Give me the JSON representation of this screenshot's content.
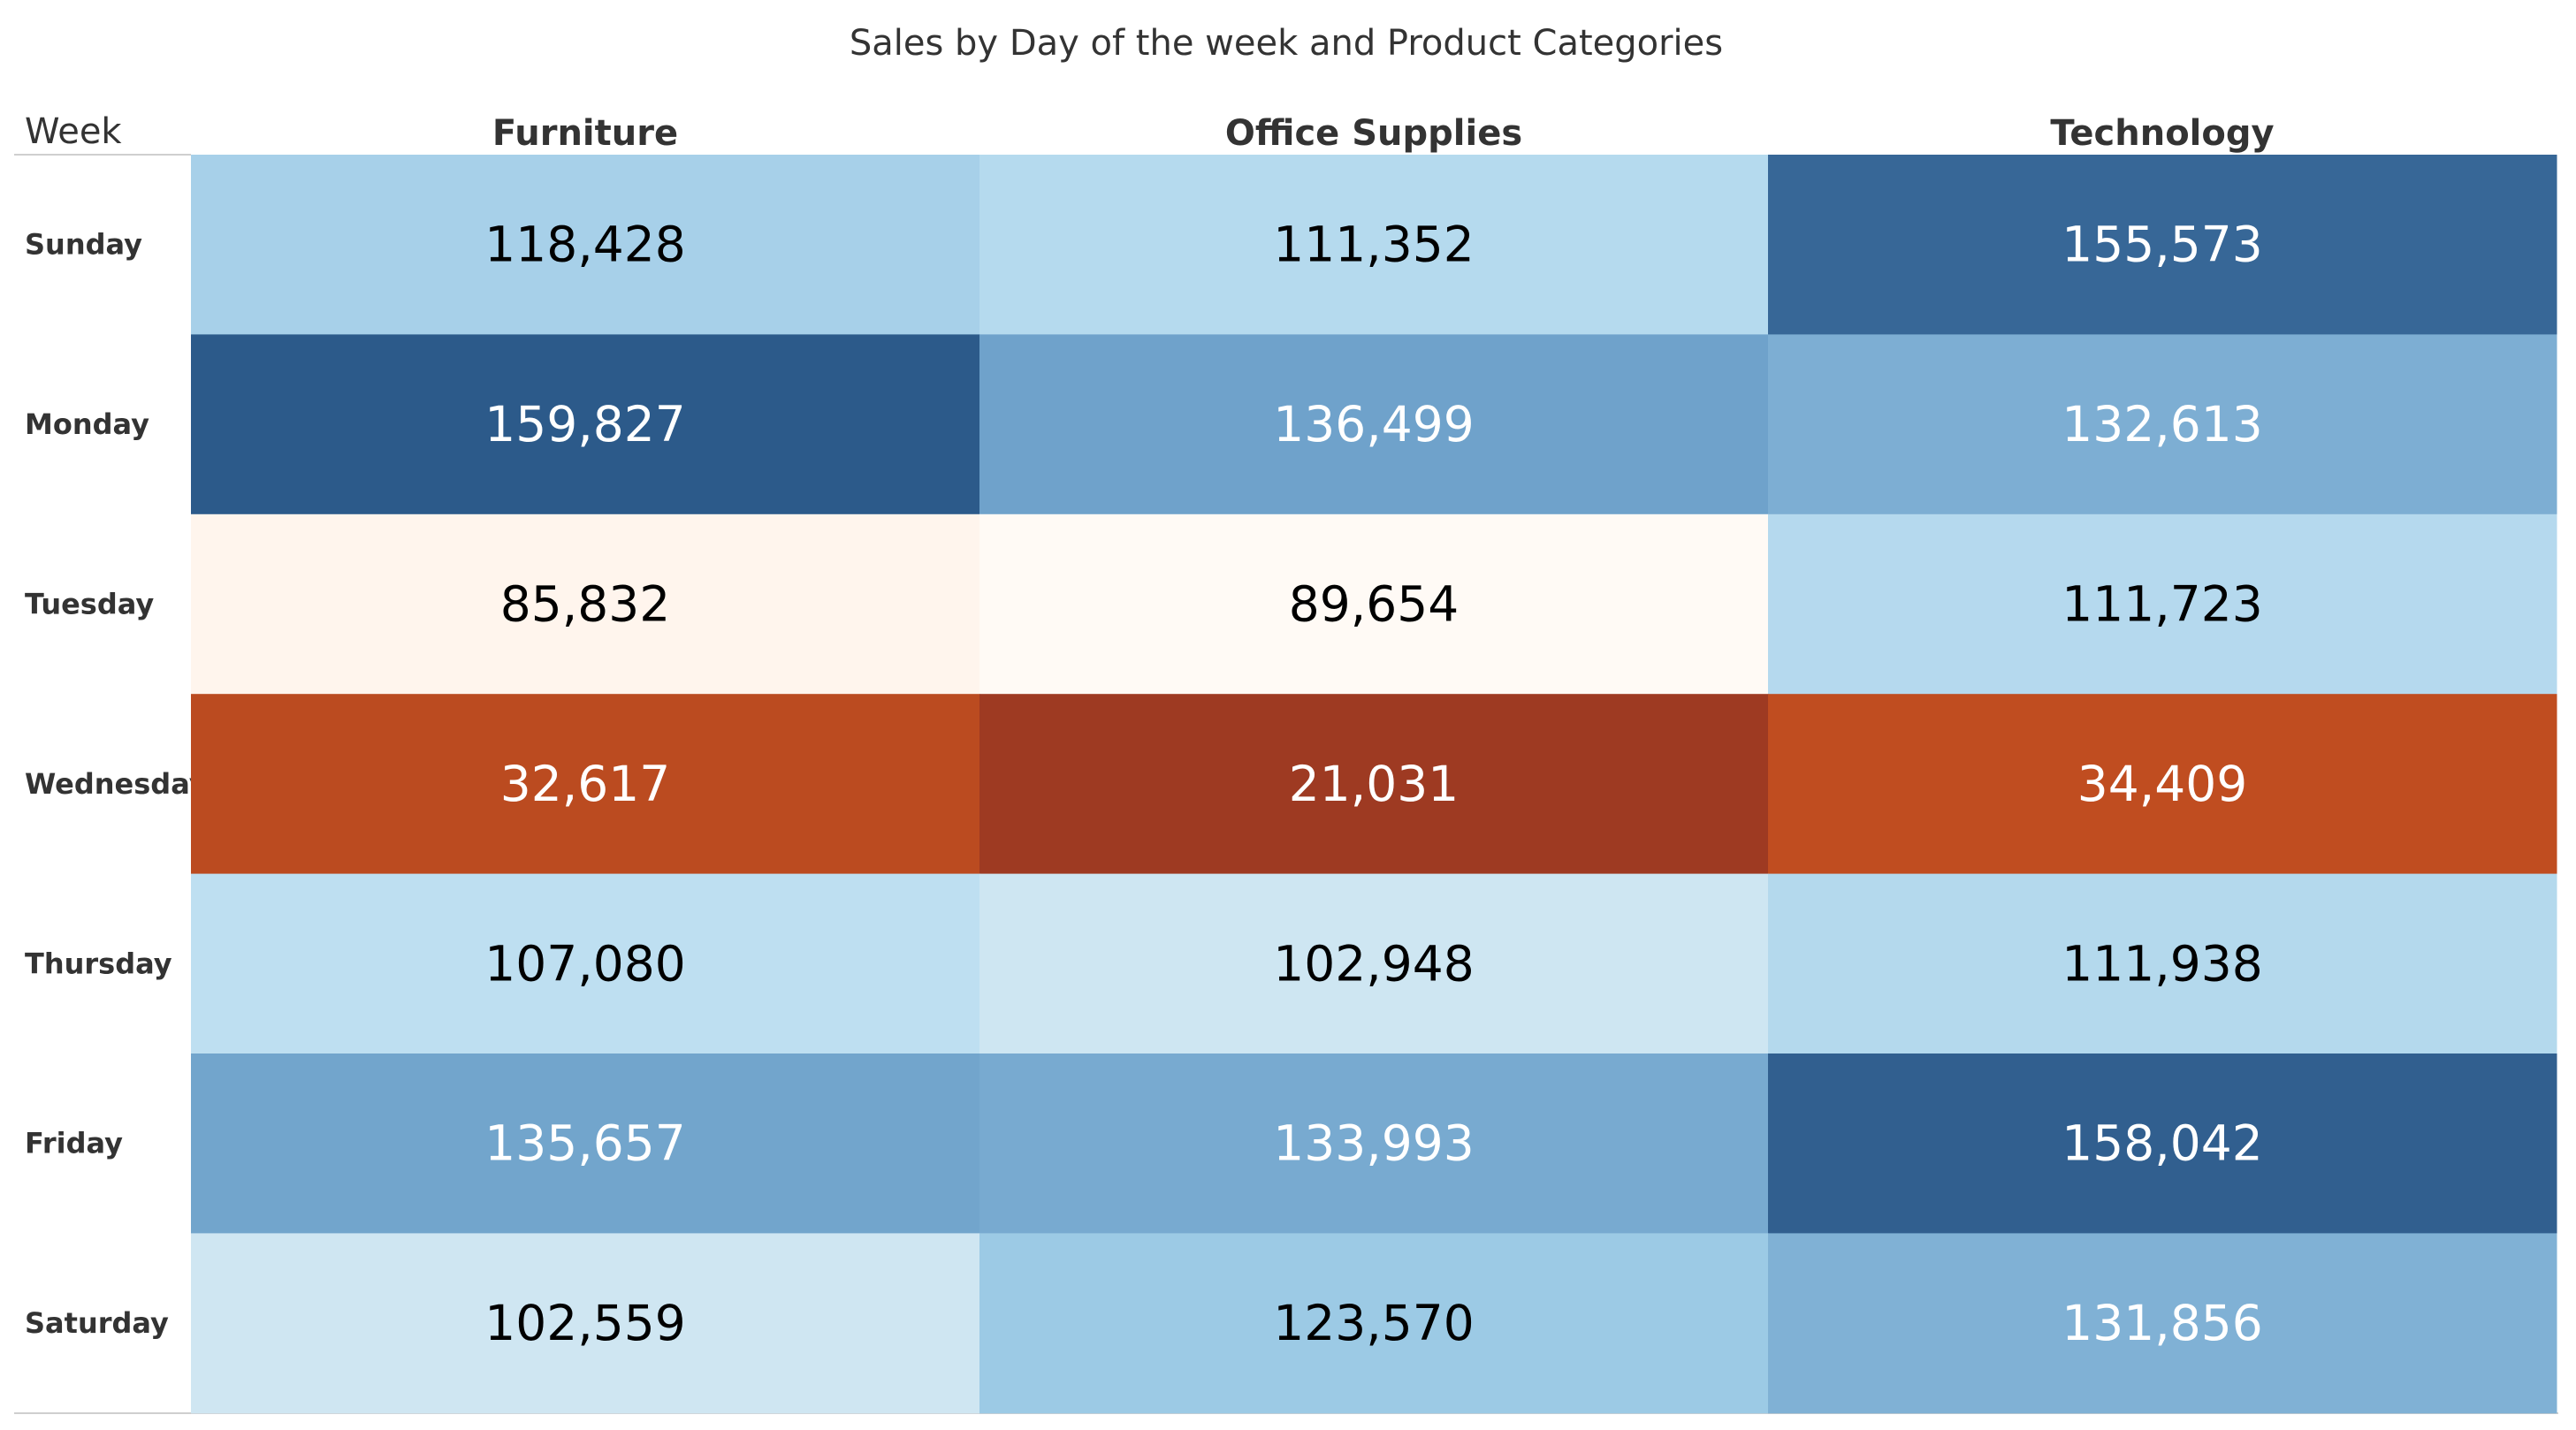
{
  "chart_data": {
    "type": "heatmap",
    "title": "Sales by Day of the week and Product Categories",
    "row_header": "Week",
    "columns": [
      "Furniture",
      "Office Supplies",
      "Technology"
    ],
    "rows": [
      "Sunday",
      "Monday",
      "Tuesday",
      "Wednesday",
      "Thursday",
      "Friday",
      "Saturday"
    ],
    "values": [
      [
        118428,
        111352,
        155573
      ],
      [
        159827,
        136499,
        132613
      ],
      [
        85832,
        89654,
        111723
      ],
      [
        32617,
        21031,
        34409
      ],
      [
        107080,
        102948,
        111938
      ],
      [
        135657,
        133993,
        158042
      ],
      [
        102559,
        123570,
        131856
      ]
    ],
    "labels": [
      [
        "118,428",
        "111,352",
        "155,573"
      ],
      [
        "159,827",
        "136,499",
        "132,613"
      ],
      [
        "85,832",
        "89,654",
        "111,723"
      ],
      [
        "32,617",
        "21,031",
        "34,409"
      ],
      [
        "107,080",
        "102,948",
        "111,938"
      ],
      [
        "135,657",
        "133,993",
        "158,042"
      ],
      [
        "102,559",
        "123,570",
        "131,856"
      ]
    ],
    "color_scale": {
      "type": "diverging",
      "scheme": "orange-blue",
      "low_color": "#9e3a22",
      "mid_color": "#fffaf5",
      "high_color": "#2c5a8a"
    },
    "grid": false,
    "legend": "none"
  }
}
